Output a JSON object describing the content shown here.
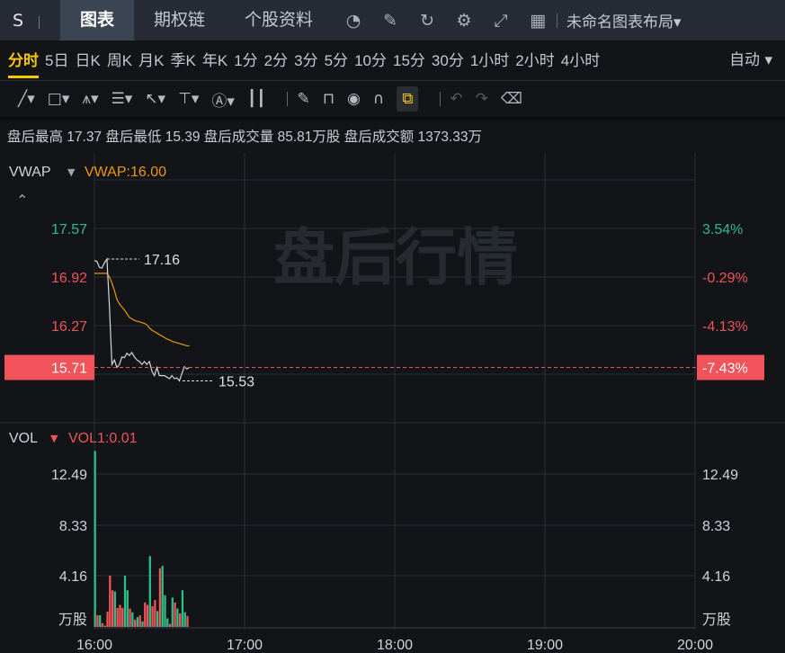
{
  "topbar": {
    "symbol": "S",
    "tabs": [
      "图表",
      "期权链",
      "个股资料"
    ],
    "active_tab": 0,
    "icons": [
      "speedometer-icon",
      "edit-icon",
      "refresh-icon",
      "settings-icon",
      "fullscreen-icon",
      "grid-icon"
    ],
    "layout_label": "未命名图表布局▾"
  },
  "timeframes": {
    "items": [
      "分时",
      "5日",
      "日K",
      "周K",
      "月K",
      "季K",
      "年K",
      "1分",
      "2分",
      "3分",
      "5分",
      "10分",
      "15分",
      "30分",
      "1小时",
      "2小时",
      "4小时"
    ],
    "active": 0,
    "mode": "自动 ▾"
  },
  "toolbar": {
    "tools": [
      "line-tool",
      "rectangle-tool",
      "pattern-tool",
      "fib-tool",
      "arrow-tool",
      "measure-tool",
      "text-tool",
      "candle-tool",
      "pencil-tool",
      "unlock-icon",
      "eye-icon",
      "magnet-icon",
      "link-icon",
      "undo-icon",
      "redo-icon",
      "trash-icon"
    ]
  },
  "info": "盘后最高 17.37 盘后最低 15.39 盘后成交量 85.81万股 盘后成交额 1373.33万",
  "colors": {
    "up": "#f0535a",
    "down": "#2ebd85",
    "vwap": "#f0960a",
    "price": "#d8d8d8"
  },
  "chart_data": [
    {
      "type": "line",
      "indicator_label": "VWAP",
      "indicator_value": "VWAP:16.00",
      "watermark": "盘后行情",
      "y_ticks": [
        "17.57",
        "16.92",
        "16.27"
      ],
      "y_ticks_right": [
        "3.54%",
        "-0.29%",
        "-4.13%"
      ],
      "current_price": "15.71",
      "current_pct": "-7.43%",
      "high_label": "17.16",
      "low_label": "15.53",
      "x_ticks": [
        "16:00",
        "17:00",
        "18:00",
        "19:00",
        "20:00"
      ],
      "series": [
        {
          "name": "price",
          "values": [
            17.14,
            17.13,
            17.05,
            17.04,
            17.11,
            17.16,
            16.53,
            15.75,
            15.81,
            15.71,
            15.75,
            15.85,
            15.84,
            15.9,
            15.87,
            15.91,
            15.85,
            15.81,
            15.79,
            15.75,
            15.79,
            15.75,
            15.79,
            15.66,
            15.6,
            15.71,
            15.6,
            15.6,
            15.6,
            15.58,
            15.56,
            15.6,
            15.56,
            15.57,
            15.53,
            15.63,
            15.72,
            15.69,
            15.71
          ]
        },
        {
          "name": "VWAP",
          "values": [
            16.97,
            16.97,
            16.97,
            16.97,
            16.97,
            16.97,
            16.92,
            16.84,
            16.74,
            16.62,
            16.56,
            16.52,
            16.48,
            16.43,
            16.38,
            16.36,
            16.34,
            16.33,
            16.32,
            16.31,
            16.3,
            16.28,
            16.24,
            16.21,
            16.19,
            16.17,
            16.15,
            16.13,
            16.11,
            16.09,
            16.08,
            16.06,
            16.05,
            16.04,
            16.03,
            16.02,
            16.01,
            16.0,
            16.0
          ]
        }
      ]
    },
    {
      "type": "bar",
      "indicator_label": "VOL",
      "indicator_value": "VOL1:0.01",
      "unit": "万股",
      "y_ticks": [
        "12.49",
        "8.33",
        "4.16"
      ],
      "values": [
        14.4,
        0.95,
        0.95,
        0.3,
        0.1,
        1.25,
        4.2,
        3.0,
        2.9,
        1.55,
        1.8,
        1.55,
        4.2,
        3.0,
        1.5,
        1.2,
        0.6,
        0.8,
        0.95,
        0.45,
        2.0,
        1.8,
        5.8,
        1.7,
        2.2,
        1.3,
        4.8,
        5.0,
        2.6,
        0.7,
        0.25,
        2.4,
        2.0,
        1.5,
        1.1,
        3.0,
        1.2,
        0.9
      ],
      "directions": [
        "down",
        "up",
        "down",
        "up",
        "down",
        "up",
        "up",
        "up",
        "down",
        "up",
        "up",
        "up",
        "down",
        "down",
        "up",
        "down",
        "up",
        "down",
        "up",
        "down",
        "up",
        "up",
        "down",
        "up",
        "up",
        "down",
        "up",
        "down",
        "down",
        "down",
        "up",
        "down",
        "up",
        "down",
        "up",
        "down",
        "down",
        "up"
      ]
    }
  ]
}
